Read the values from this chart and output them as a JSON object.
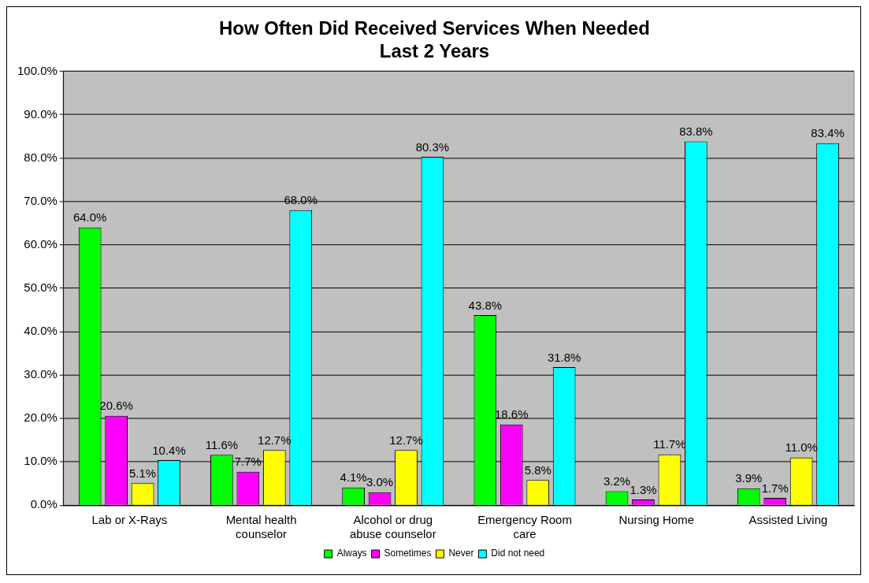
{
  "chart_data": {
    "type": "bar",
    "title": "How Often Did Received Services When Needed Last 2 Years",
    "categories": [
      "Lab or X-Rays",
      "Mental health counselor",
      "Alcohol or drug abuse counselor",
      "Emergency Room care",
      "Nursing Home",
      "Assisted Living"
    ],
    "series": [
      {
        "name": "Always",
        "color": "#00ff00",
        "values": [
          64.0,
          11.6,
          4.1,
          43.8,
          3.2,
          3.9
        ],
        "value_labels": [
          "64.0%",
          "11.6%",
          "4.1%",
          "43.8%",
          "3.2%",
          "3.9%"
        ]
      },
      {
        "name": "Sometimes",
        "color": "#ff00ff",
        "values": [
          20.6,
          7.7,
          3.0,
          18.6,
          1.3,
          1.7
        ],
        "value_labels": [
          "20.6%",
          "7.7%",
          "3.0%",
          "18.6%",
          "1.3%",
          "1.7%"
        ]
      },
      {
        "name": "Never",
        "color": "#ffff00",
        "values": [
          5.1,
          12.7,
          12.7,
          5.8,
          11.7,
          11.0
        ],
        "value_labels": [
          "5.1%",
          "12.7%",
          "12.7%",
          "5.8%",
          "11.7%",
          "11.0%"
        ]
      },
      {
        "name": "Did not need",
        "color": "#00ffff",
        "values": [
          10.4,
          68.0,
          80.3,
          31.8,
          83.8,
          83.4
        ],
        "value_labels": [
          "10.4%",
          "68.0%",
          "80.3%",
          "31.8%",
          "83.8%",
          "83.4%"
        ]
      }
    ],
    "ylim": [
      0,
      100
    ],
    "yticks": [
      {
        "value": 0,
        "label": "0.0%"
      },
      {
        "value": 10,
        "label": "10.0%"
      },
      {
        "value": 20,
        "label": "20.0%"
      },
      {
        "value": 30,
        "label": "30.0%"
      },
      {
        "value": 40,
        "label": "40.0%"
      },
      {
        "value": 50,
        "label": "50.0%"
      },
      {
        "value": 60,
        "label": "60.0%"
      },
      {
        "value": 70,
        "label": "70.0%"
      },
      {
        "value": 80,
        "label": "80.0%"
      },
      {
        "value": 90,
        "label": "90.0%"
      },
      {
        "value": 100,
        "label": "100.0%"
      }
    ],
    "grid": "y",
    "legend": "bottom"
  }
}
